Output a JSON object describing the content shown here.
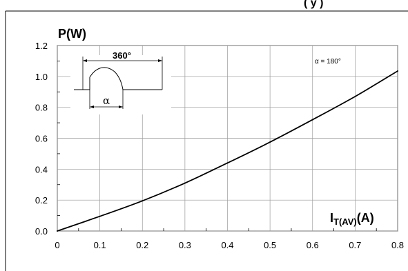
{
  "header_fragment": "(  y )",
  "chart_data": {
    "type": "line",
    "title": "",
    "ylabel": "P(W)",
    "xlabel_main": "I",
    "xlabel_sub": "T(AV)",
    "xlabel_unit": "(A)",
    "xlim": [
      0,
      0.8
    ],
    "ylim": [
      0,
      1.2
    ],
    "x_ticks": [
      "0",
      "0.1",
      "0.2",
      "0.3",
      "0.4",
      "0.5",
      "0.6",
      "0.7",
      "0.8"
    ],
    "y_ticks": [
      "0.0",
      "0.2",
      "0.4",
      "0.6",
      "0.8",
      "1.0",
      "1.2"
    ],
    "grid": true,
    "annotation": "α = 180°",
    "inset": {
      "period_label": "360°",
      "conduction_label": "α"
    },
    "series": [
      {
        "x": [
          0,
          0.1,
          0.2,
          0.3,
          0.4,
          0.5,
          0.6,
          0.7,
          0.8
        ],
        "values": [
          0.0,
          0.095,
          0.195,
          0.31,
          0.44,
          0.575,
          0.72,
          0.87,
          1.035
        ]
      }
    ]
  }
}
